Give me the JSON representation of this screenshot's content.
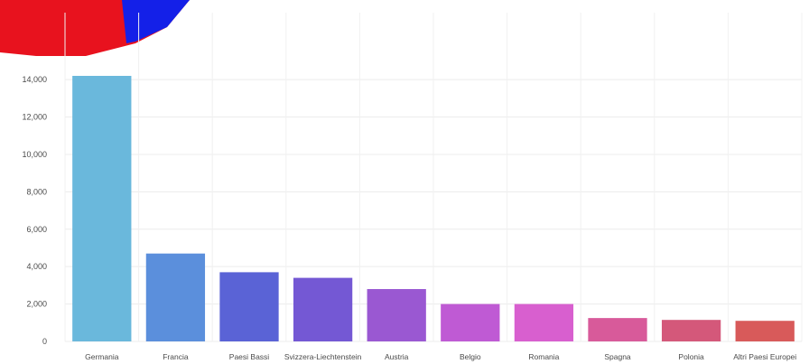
{
  "chart_data": {
    "type": "bar",
    "categories": [
      "Germania",
      "Francia",
      "Paesi Bassi",
      "Svizzera-Liechtenstein",
      "Austria",
      "Belgio",
      "Romania",
      "Spagna",
      "Polonia",
      "Altri Paesi Europei"
    ],
    "values": [
      14200,
      4700,
      3700,
      3400,
      2800,
      2000,
      2000,
      1250,
      1150,
      1100
    ],
    "ylim": [
      0,
      14200
    ],
    "yticks": [
      0,
      2000,
      4000,
      6000,
      8000,
      10000,
      12000,
      14000
    ],
    "ytick_labels": [
      "0",
      "2,000",
      "4,000",
      "6,000",
      "8,000",
      "10,000",
      "12,000",
      "14,000"
    ],
    "grid": true,
    "bar_colors": [
      "#6ab8dc",
      "#5b8fdc",
      "#5a63d6",
      "#7458d4",
      "#9a58d2",
      "#bf5ad4",
      "#d85fcf",
      "#d85a9a",
      "#d4587a",
      "#d85a5a"
    ]
  },
  "decoration": {
    "pie_colors": [
      "#e8121e",
      "#1420e8"
    ]
  }
}
